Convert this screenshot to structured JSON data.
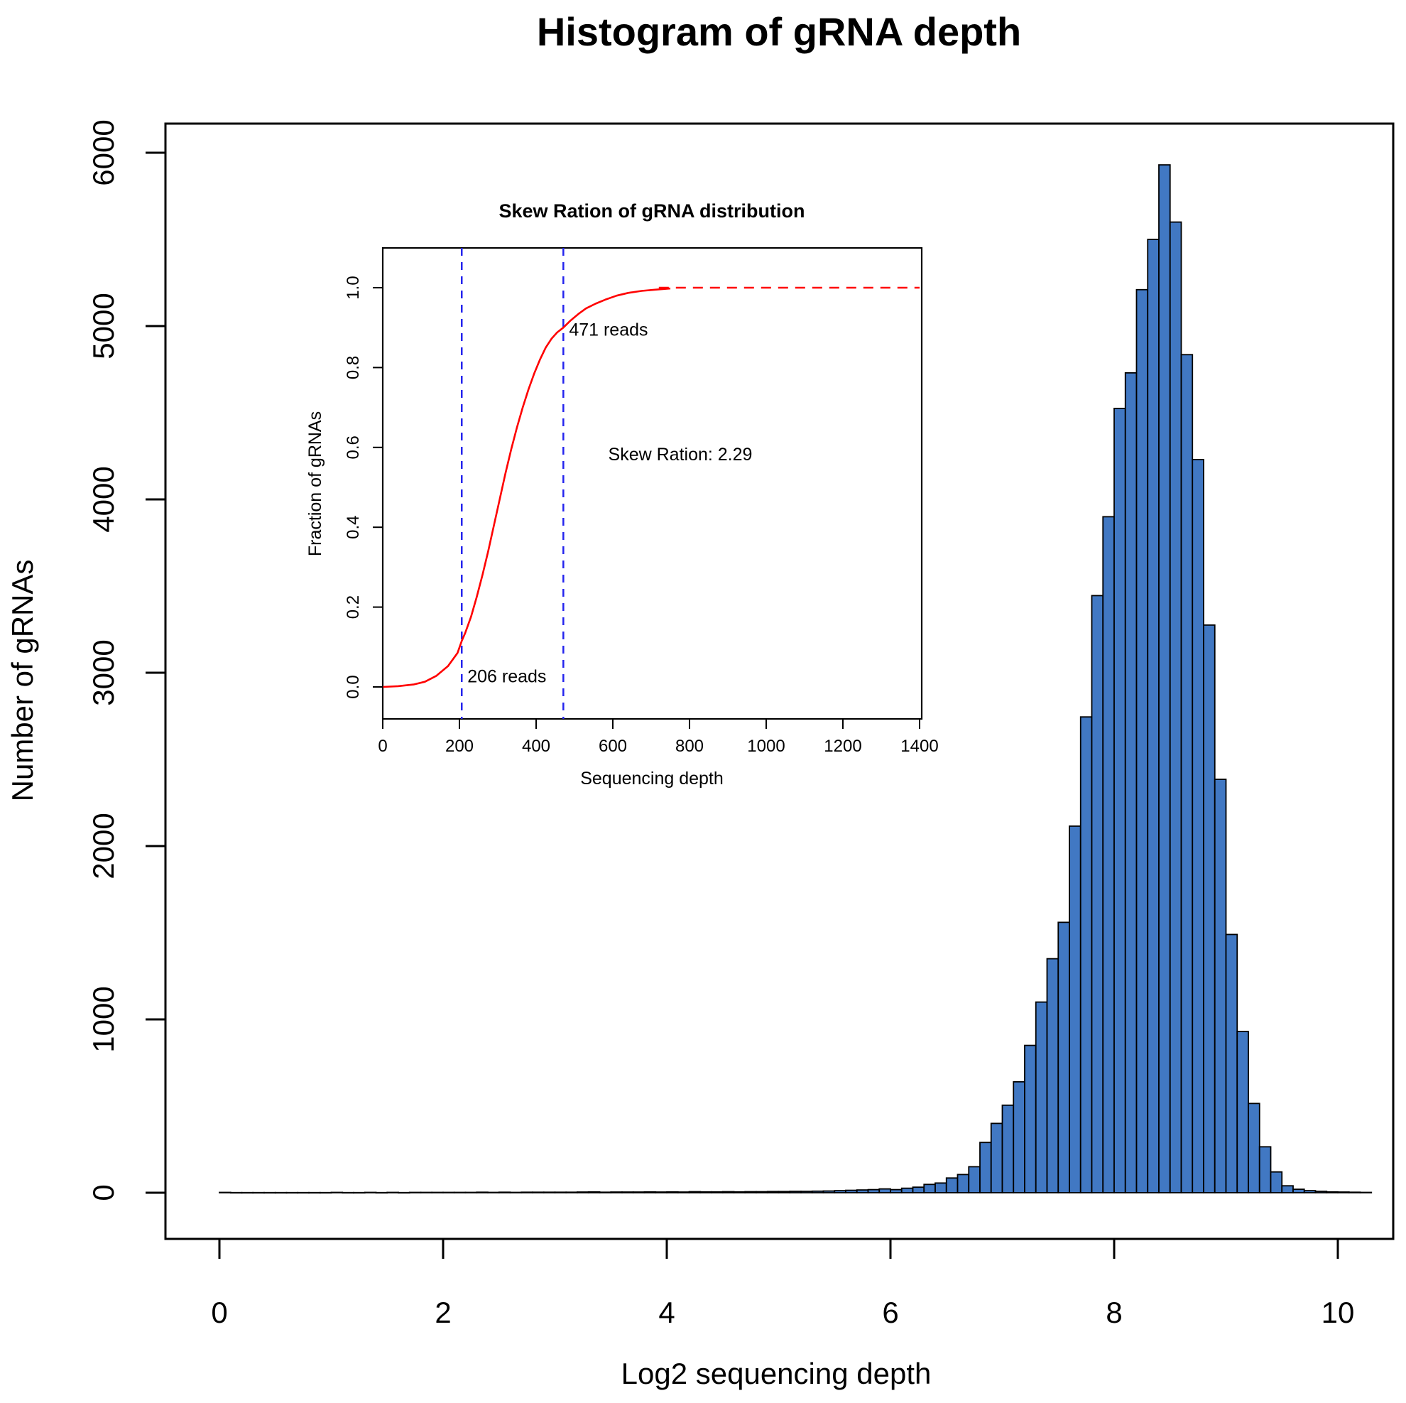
{
  "title": "Histogram of gRNA depth",
  "chart_data": [
    {
      "type": "bar",
      "role": "main-histogram",
      "title": "Histogram of gRNA depth",
      "xlabel": "Log2 sequencing depth",
      "ylabel": "Number of gRNAs",
      "x_ticks": [
        0,
        2,
        4,
        6,
        8,
        10
      ],
      "y_ticks": [
        0,
        1000,
        2000,
        3000,
        4000,
        5000,
        6000
      ],
      "xlim": [
        -0.5,
        10.5
      ],
      "ylim": [
        0,
        6000
      ],
      "bin_start": 0.0,
      "bin_width": 0.1,
      "counts": [
        2,
        1,
        1,
        1,
        1,
        1,
        1,
        1,
        1,
        1,
        2,
        1,
        1,
        2,
        1,
        2,
        1,
        2,
        2,
        2,
        2,
        2,
        2,
        3,
        2,
        3,
        2,
        3,
        3,
        3,
        3,
        3,
        4,
        5,
        3,
        4,
        4,
        4,
        5,
        4,
        5,
        4,
        6,
        5,
        5,
        6,
        5,
        6,
        6,
        7,
        7,
        8,
        8,
        9,
        10,
        12,
        14,
        16,
        18,
        22,
        18,
        26,
        32,
        48,
        56,
        85,
        105,
        150,
        290,
        400,
        505,
        640,
        850,
        1100,
        1350,
        1560,
        2115,
        2745,
        3445,
        3900,
        4525,
        4730,
        5210,
        5500,
        5930,
        5600,
        4835,
        4230,
        3275,
        2385,
        1490,
        930,
        515,
        265,
        120,
        40,
        20,
        12,
        8,
        5,
        4,
        3,
        2
      ],
      "bar_color": "#4178C3",
      "bar_border": "#000000",
      "grid": false,
      "legend": "none"
    },
    {
      "type": "line",
      "role": "inset-cdf",
      "title": "Skew Ration of gRNA distribution",
      "xlabel": "Sequencing depth",
      "ylabel": "Fraction of gRNAs",
      "x_ticks": [
        0,
        200,
        400,
        600,
        800,
        1000,
        1200,
        1400
      ],
      "y_tick_labels": [
        "0.0",
        "0.2",
        "0.4",
        "0.6",
        "0.8",
        "1.0"
      ],
      "y_tick_values": [
        0.0,
        0.2,
        0.4,
        0.6,
        0.8,
        1.0
      ],
      "xlim": [
        0,
        1400
      ],
      "ylim": [
        0.0,
        1.08
      ],
      "curve": {
        "x": [
          1,
          40,
          80,
          110,
          140,
          170,
          195,
          206,
          215,
          230,
          245,
          260,
          275,
          290,
          305,
          320,
          335,
          350,
          365,
          380,
          395,
          410,
          425,
          440,
          455,
          471,
          490,
          510,
          530,
          555,
          580,
          610,
          640,
          675,
          710,
          750
        ],
        "y": [
          0.0,
          0.002,
          0.006,
          0.013,
          0.028,
          0.052,
          0.085,
          0.115,
          0.135,
          0.175,
          0.225,
          0.28,
          0.34,
          0.405,
          0.47,
          0.535,
          0.595,
          0.65,
          0.7,
          0.745,
          0.785,
          0.82,
          0.85,
          0.872,
          0.888,
          0.9,
          0.918,
          0.934,
          0.948,
          0.96,
          0.97,
          0.98,
          0.987,
          0.992,
          0.995,
          0.998
        ]
      },
      "asymptote": {
        "y": 1.0,
        "x_start": 720,
        "x_end": 1400
      },
      "vlines": [
        {
          "x": 206,
          "label": "206 reads",
          "label_at": 0.012
        },
        {
          "x": 471,
          "label": "471 reads",
          "label_at": 0.88
        }
      ],
      "annotation": "Skew Ration: 2.29",
      "curve_color": "#FF0000",
      "vline_color": "#2424EE",
      "grid": false,
      "legend": "none"
    }
  ]
}
